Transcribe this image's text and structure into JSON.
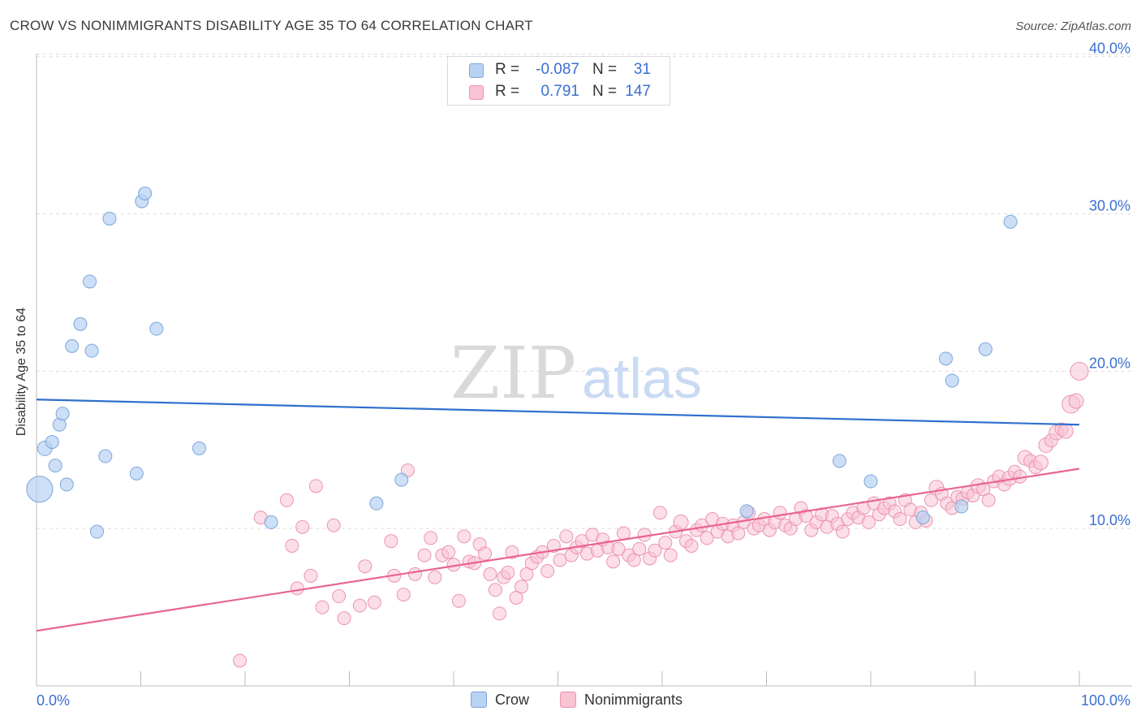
{
  "title": "CROW VS NONIMMIGRANTS DISABILITY AGE 35 TO 64 CORRELATION CHART",
  "source": "Source: ZipAtlas.com",
  "watermark": {
    "zip": "ZIP",
    "atlas": "atlas"
  },
  "colors": {
    "crow_fill": "#b8d2f2",
    "crow_stroke": "#7aa6dc",
    "crow_line": "#2f6fce",
    "non_fill": "#f8c3d3",
    "non_stroke": "#ec94b0",
    "non_line": "#e8648f",
    "axis_text": "#3a6fd0",
    "grid": "#dddddd"
  },
  "legend": {
    "rows": [
      {
        "r_label": "R =",
        "r_value": "-0.087",
        "n_label": "N =",
        "n_value": "31"
      },
      {
        "r_label": "R =",
        "r_value": "0.791",
        "n_label": "N =",
        "n_value": "147"
      }
    ]
  },
  "bottom_legend": {
    "crow": "Crow",
    "nonimmigrants": "Nonimmigrants"
  },
  "chart_data": {
    "type": "scatter",
    "title": "CROW VS NONIMMIGRANTS DISABILITY AGE 35 TO 64 CORRELATION CHART",
    "xlabel": "",
    "ylabel": "Disability Age 35 to 64",
    "xlim": [
      0,
      100
    ],
    "ylim": [
      0,
      40.5
    ],
    "x_tick_labels": [
      "0.0%",
      "100.0%"
    ],
    "y_ticks": [
      10,
      20,
      30,
      40
    ],
    "y_tick_labels": [
      "10.0%",
      "20.0%",
      "30.0%",
      "40.0%"
    ],
    "grid": "horizontal dashed",
    "legend_position": "top-center",
    "series": [
      {
        "name": "Crow",
        "r": -0.087,
        "n": 31,
        "trend": {
          "x": [
            0,
            100
          ],
          "y": [
            18.2,
            16.6
          ]
        },
        "points": [
          [
            0.3,
            12.5,
            16
          ],
          [
            0.8,
            15.1,
            9
          ],
          [
            1.5,
            15.5,
            8
          ],
          [
            1.8,
            14.0,
            8
          ],
          [
            2.2,
            16.6,
            8
          ],
          [
            2.5,
            17.3,
            8
          ],
          [
            2.9,
            12.8,
            8
          ],
          [
            3.4,
            21.6,
            8
          ],
          [
            4.2,
            23.0,
            8
          ],
          [
            5.1,
            25.7,
            8
          ],
          [
            5.3,
            21.3,
            8
          ],
          [
            5.8,
            9.8,
            8
          ],
          [
            6.6,
            14.6,
            8
          ],
          [
            7.0,
            29.7,
            8
          ],
          [
            9.6,
            13.5,
            8
          ],
          [
            10.1,
            30.8,
            8
          ],
          [
            10.4,
            31.3,
            8
          ],
          [
            11.5,
            22.7,
            8
          ],
          [
            15.6,
            15.1,
            8
          ],
          [
            22.5,
            10.4,
            8
          ],
          [
            32.6,
            11.6,
            8
          ],
          [
            35.0,
            13.1,
            8
          ],
          [
            68.1,
            11.1,
            8
          ],
          [
            77.0,
            14.3,
            8
          ],
          [
            80.0,
            13.0,
            8
          ],
          [
            85.0,
            10.7,
            8
          ],
          [
            87.8,
            19.4,
            8
          ],
          [
            87.2,
            20.8,
            8
          ],
          [
            88.7,
            11.4,
            8
          ],
          [
            91.0,
            21.4,
            8
          ],
          [
            93.4,
            29.5,
            8
          ]
        ]
      },
      {
        "name": "Nonimmigrants",
        "r": 0.791,
        "n": 147,
        "trend": {
          "x": [
            0,
            100
          ],
          "y": [
            3.5,
            13.8
          ]
        },
        "points": [
          [
            19.5,
            1.6,
            8
          ],
          [
            21.5,
            10.7,
            8
          ],
          [
            24.0,
            11.8,
            8
          ],
          [
            24.5,
            8.9,
            8
          ],
          [
            25.0,
            6.2,
            8
          ],
          [
            25.5,
            10.1,
            8
          ],
          [
            26.3,
            7.0,
            8
          ],
          [
            26.8,
            12.7,
            8
          ],
          [
            27.4,
            5.0,
            8
          ],
          [
            28.5,
            10.2,
            8
          ],
          [
            29.0,
            5.7,
            8
          ],
          [
            29.5,
            4.3,
            8
          ],
          [
            31.0,
            5.1,
            8
          ],
          [
            31.5,
            7.6,
            8
          ],
          [
            32.4,
            5.3,
            8
          ],
          [
            34.0,
            9.2,
            8
          ],
          [
            34.3,
            7.0,
            8
          ],
          [
            35.2,
            5.8,
            8
          ],
          [
            35.6,
            13.7,
            8
          ],
          [
            36.3,
            7.1,
            8
          ],
          [
            37.2,
            8.3,
            8
          ],
          [
            37.8,
            9.4,
            8
          ],
          [
            38.2,
            6.9,
            8
          ],
          [
            38.9,
            8.3,
            8
          ],
          [
            39.5,
            8.5,
            8
          ],
          [
            40.0,
            7.7,
            8
          ],
          [
            40.5,
            5.4,
            8
          ],
          [
            41.0,
            9.5,
            8
          ],
          [
            41.5,
            7.9,
            8
          ],
          [
            42.0,
            7.8,
            8
          ],
          [
            42.5,
            9.0,
            8
          ],
          [
            43.0,
            8.4,
            8
          ],
          [
            43.5,
            7.1,
            8
          ],
          [
            44.0,
            6.1,
            8
          ],
          [
            44.4,
            4.6,
            8
          ],
          [
            44.8,
            6.9,
            8
          ],
          [
            45.2,
            7.2,
            8
          ],
          [
            45.6,
            8.5,
            8
          ],
          [
            46.0,
            5.6,
            8
          ],
          [
            46.5,
            6.3,
            8
          ],
          [
            47.0,
            7.1,
            8
          ],
          [
            47.5,
            7.8,
            8
          ],
          [
            48.0,
            8.2,
            8
          ],
          [
            48.5,
            8.5,
            8
          ],
          [
            49.0,
            7.3,
            8
          ],
          [
            49.6,
            8.9,
            8
          ],
          [
            50.2,
            8.0,
            8
          ],
          [
            50.8,
            9.5,
            8
          ],
          [
            51.3,
            8.3,
            8
          ],
          [
            51.8,
            8.8,
            8
          ],
          [
            52.3,
            9.2,
            8
          ],
          [
            52.8,
            8.4,
            8
          ],
          [
            53.3,
            9.6,
            8
          ],
          [
            53.8,
            8.6,
            8
          ],
          [
            54.3,
            9.3,
            8
          ],
          [
            54.8,
            8.8,
            8
          ],
          [
            55.3,
            7.9,
            8
          ],
          [
            55.8,
            8.7,
            8
          ],
          [
            56.3,
            9.7,
            8
          ],
          [
            56.8,
            8.3,
            8
          ],
          [
            57.3,
            8.0,
            8
          ],
          [
            57.8,
            8.7,
            8
          ],
          [
            58.3,
            9.6,
            8
          ],
          [
            58.8,
            8.1,
            8
          ],
          [
            59.3,
            8.6,
            8
          ],
          [
            59.8,
            11.0,
            8
          ],
          [
            60.3,
            9.1,
            8
          ],
          [
            60.8,
            8.3,
            8
          ],
          [
            61.3,
            9.8,
            8
          ],
          [
            61.8,
            10.4,
            9
          ],
          [
            62.3,
            9.2,
            8
          ],
          [
            62.8,
            8.9,
            8
          ],
          [
            63.3,
            9.9,
            8
          ],
          [
            63.8,
            10.2,
            8
          ],
          [
            64.3,
            9.4,
            8
          ],
          [
            64.8,
            10.6,
            8
          ],
          [
            65.3,
            9.8,
            8
          ],
          [
            65.8,
            10.3,
            8
          ],
          [
            66.3,
            9.5,
            8
          ],
          [
            66.8,
            10.2,
            8
          ],
          [
            67.3,
            9.7,
            8
          ],
          [
            67.8,
            10.4,
            8
          ],
          [
            68.3,
            11.0,
            8
          ],
          [
            68.8,
            10.0,
            8
          ],
          [
            69.3,
            10.2,
            8
          ],
          [
            69.8,
            10.6,
            8
          ],
          [
            70.3,
            9.9,
            8
          ],
          [
            70.8,
            10.4,
            8
          ],
          [
            71.3,
            11.0,
            8
          ],
          [
            71.8,
            10.2,
            8
          ],
          [
            72.3,
            10.0,
            8
          ],
          [
            72.8,
            10.6,
            8
          ],
          [
            73.3,
            11.3,
            8
          ],
          [
            73.8,
            10.8,
            8
          ],
          [
            74.3,
            9.9,
            8
          ],
          [
            74.8,
            10.4,
            8
          ],
          [
            75.3,
            10.9,
            8
          ],
          [
            75.8,
            10.1,
            8
          ],
          [
            76.3,
            10.8,
            8
          ],
          [
            76.8,
            10.3,
            8
          ],
          [
            77.3,
            9.8,
            8
          ],
          [
            77.8,
            10.6,
            8
          ],
          [
            78.3,
            11.0,
            8
          ],
          [
            78.8,
            10.7,
            8
          ],
          [
            79.3,
            11.3,
            8
          ],
          [
            79.8,
            10.4,
            8
          ],
          [
            80.3,
            11.6,
            8
          ],
          [
            80.8,
            10.9,
            8
          ],
          [
            81.3,
            11.3,
            8
          ],
          [
            81.8,
            11.6,
            8
          ],
          [
            82.3,
            11.1,
            8
          ],
          [
            82.8,
            10.6,
            8
          ],
          [
            83.3,
            11.8,
            8
          ],
          [
            83.8,
            11.2,
            8
          ],
          [
            84.3,
            10.4,
            8
          ],
          [
            84.8,
            11.0,
            8
          ],
          [
            85.3,
            10.5,
            8
          ],
          [
            85.8,
            11.8,
            8
          ],
          [
            86.3,
            12.6,
            9
          ],
          [
            86.8,
            12.2,
            8
          ],
          [
            87.3,
            11.6,
            8
          ],
          [
            87.8,
            11.3,
            8
          ],
          [
            88.3,
            12.0,
            8
          ],
          [
            88.8,
            11.9,
            8
          ],
          [
            89.3,
            12.3,
            8
          ],
          [
            89.8,
            12.1,
            8
          ],
          [
            90.3,
            12.7,
            9
          ],
          [
            90.8,
            12.5,
            8
          ],
          [
            91.3,
            11.8,
            8
          ],
          [
            91.8,
            13.0,
            8
          ],
          [
            92.3,
            13.3,
            8
          ],
          [
            92.8,
            12.8,
            8
          ],
          [
            93.3,
            13.2,
            9
          ],
          [
            93.8,
            13.6,
            8
          ],
          [
            94.3,
            13.3,
            8
          ],
          [
            94.8,
            14.5,
            9
          ],
          [
            95.3,
            14.3,
            8
          ],
          [
            95.8,
            13.9,
            8
          ],
          [
            96.3,
            14.2,
            9
          ],
          [
            96.8,
            15.3,
            9
          ],
          [
            97.3,
            15.6,
            8
          ],
          [
            97.8,
            16.1,
            9
          ],
          [
            98.3,
            16.3,
            8
          ],
          [
            98.7,
            16.2,
            9
          ],
          [
            99.2,
            17.9,
            11
          ],
          [
            99.7,
            18.1,
            9
          ],
          [
            100.0,
            20.0,
            11
          ]
        ]
      }
    ]
  }
}
